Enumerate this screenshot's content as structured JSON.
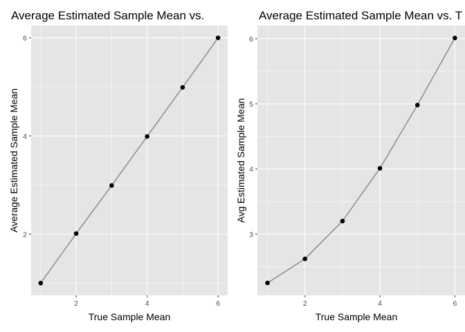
{
  "chart_data": [
    {
      "type": "line",
      "title": "Average Estimated Sample Mean vs.",
      "xlabel": "True Sample Mean",
      "ylabel": "Average Estimated Sample Mean",
      "x": [
        1,
        2,
        3,
        4,
        5,
        6
      ],
      "series": [
        {
          "values": [
            1.0,
            2.01,
            2.99,
            3.99,
            4.99,
            6.0
          ]
        }
      ],
      "xlim": [
        0.73,
        6.27
      ],
      "ylim": [
        0.75,
        6.25
      ],
      "xticks": [
        2,
        4,
        6
      ],
      "yticks": [
        2,
        4,
        6
      ],
      "xminor": [
        1,
        3,
        5
      ],
      "yminor": [
        1,
        3,
        5
      ],
      "grid": true,
      "background": "#e5e5e5",
      "grid_color": "#ffffff",
      "line_color": "#7f7f7f",
      "point_color": "#000000"
    },
    {
      "type": "line",
      "title": "Average Estimated Sample Mean vs. T",
      "xlabel": "True Sample Mean",
      "ylabel": "Avg Estimated Sample Mean",
      "x": [
        1,
        2,
        3,
        4,
        5,
        6
      ],
      "series": [
        {
          "values": [
            2.25,
            2.62,
            3.2,
            4.01,
            4.98,
            6.01
          ]
        }
      ],
      "xlim": [
        0.73,
        6.27
      ],
      "ylim": [
        2.06,
        6.2
      ],
      "xticks": [
        2,
        4,
        6
      ],
      "yticks": [
        3,
        4,
        5,
        6
      ],
      "xminor": [
        1,
        3,
        5
      ],
      "yminor": [
        2.5,
        3.5,
        4.5,
        5.5
      ],
      "grid": true,
      "background": "#e5e5e5",
      "grid_color": "#ffffff",
      "line_color": "#7f7f7f",
      "point_color": "#000000"
    }
  ]
}
